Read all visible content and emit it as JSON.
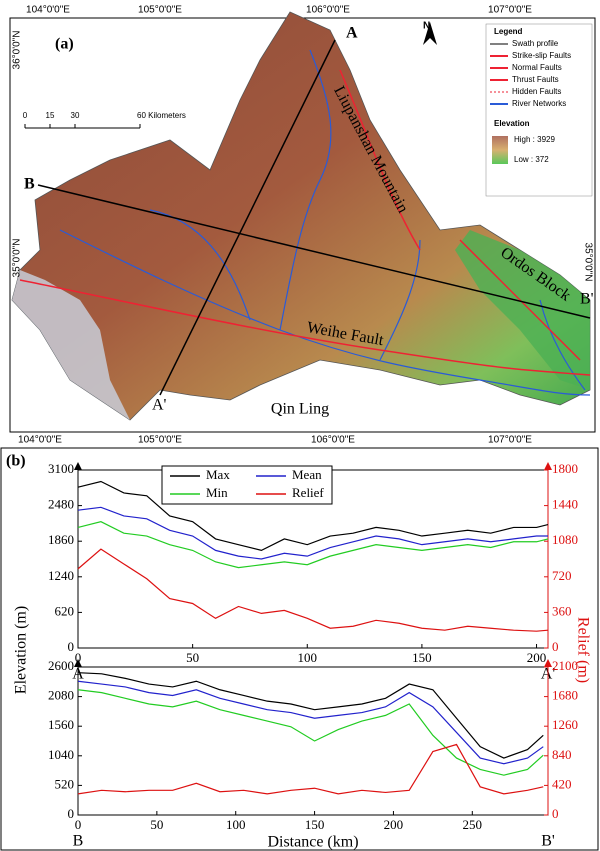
{
  "map": {
    "panel_label": "(a)",
    "lon_top": [
      "104°0'0\"E",
      "105°0'0\"E",
      "106°0'0\"E",
      "107°0'0\"E"
    ],
    "lon_bottom": [
      "104°0'0\"E",
      "105°0'0\"E",
      "106°0'0\"E",
      "107°0'0\"E"
    ],
    "lat_left": [
      "36°0'0\"N",
      "35°0'0\"N"
    ],
    "lat_right": [
      "35°0'0\"N"
    ],
    "north": "N",
    "scale": [
      "0",
      "15",
      "30",
      "60 Kilometers"
    ],
    "legend_title": "Legend",
    "legend_items": [
      "Swath profile",
      "Strike-slip Faults",
      "Normal Faults",
      "Thrust Faults",
      "Hidden Faults",
      "River Networks"
    ],
    "elevation_title": "Elevation",
    "elevation_high": "High : 3929",
    "elevation_low": "Low : 372",
    "profile_labels": [
      "A",
      "A'",
      "B",
      "B'"
    ],
    "place_labels": [
      "Liupanshan Mountain",
      "Ordos Block",
      "Weihe Fault",
      "Qin Ling"
    ]
  },
  "panel_label": "(b)",
  "y_label": "Elevation (m)",
  "y2_label": "Relief (m)",
  "x_label": "Distance (km)",
  "chart_data": [
    {
      "type": "line",
      "start_label": "A",
      "end_label": "A'",
      "legend": true,
      "x": [
        0,
        10,
        20,
        30,
        40,
        50,
        60,
        70,
        80,
        90,
        100,
        110,
        120,
        130,
        140,
        150,
        160,
        170,
        180,
        190,
        200,
        205
      ],
      "series": [
        {
          "name": "Max",
          "color": "#000000",
          "values": [
            2800,
            2900,
            2700,
            2650,
            2300,
            2200,
            1900,
            1800,
            1700,
            1900,
            1800,
            1950,
            2000,
            2100,
            2050,
            1950,
            2000,
            2050,
            2000,
            2100,
            2100,
            2150
          ]
        },
        {
          "name": "Mean",
          "color": "#2222cc",
          "values": [
            2400,
            2450,
            2300,
            2250,
            2050,
            1950,
            1700,
            1600,
            1550,
            1650,
            1600,
            1750,
            1850,
            1950,
            1900,
            1800,
            1850,
            1900,
            1850,
            1900,
            1950,
            1950
          ]
        },
        {
          "name": "Min",
          "color": "#22cc22",
          "values": [
            2100,
            2200,
            2000,
            1950,
            1800,
            1700,
            1500,
            1400,
            1450,
            1500,
            1450,
            1600,
            1700,
            1800,
            1750,
            1700,
            1750,
            1800,
            1750,
            1850,
            1850,
            1900
          ]
        },
        {
          "name": "Relief",
          "color": "#dd1111",
          "axis": "y2",
          "values": [
            800,
            1000,
            850,
            700,
            500,
            450,
            300,
            420,
            350,
            380,
            300,
            200,
            220,
            280,
            250,
            200,
            180,
            220,
            200,
            180,
            170,
            180
          ]
        }
      ],
      "xlim": [
        0,
        205
      ],
      "xticks": [
        0,
        50,
        100,
        150,
        200
      ],
      "ylim": [
        0,
        3100
      ],
      "yticks": [
        0,
        620,
        1240,
        1860,
        2480,
        3100
      ],
      "y2lim": [
        0,
        1800
      ],
      "y2ticks": [
        0,
        360,
        720,
        1080,
        1440,
        1800
      ]
    },
    {
      "type": "line",
      "start_label": "B",
      "end_label": "B'",
      "legend": false,
      "x": [
        0,
        15,
        30,
        45,
        60,
        75,
        90,
        105,
        120,
        135,
        150,
        165,
        180,
        195,
        210,
        225,
        240,
        255,
        270,
        285,
        295
      ],
      "series": [
        {
          "name": "Max",
          "color": "#000000",
          "values": [
            2500,
            2480,
            2400,
            2300,
            2250,
            2350,
            2200,
            2100,
            2000,
            1950,
            1850,
            1900,
            1950,
            2050,
            2300,
            2200,
            1700,
            1200,
            1000,
            1150,
            1400
          ]
        },
        {
          "name": "Mean",
          "color": "#2222cc",
          "values": [
            2350,
            2300,
            2250,
            2150,
            2100,
            2200,
            2050,
            1950,
            1850,
            1800,
            1700,
            1750,
            1800,
            1900,
            2150,
            1900,
            1450,
            1000,
            900,
            1000,
            1200
          ]
        },
        {
          "name": "Min",
          "color": "#22cc22",
          "values": [
            2200,
            2150,
            2050,
            1950,
            1900,
            2000,
            1850,
            1750,
            1650,
            1550,
            1300,
            1500,
            1650,
            1750,
            1950,
            1400,
            1000,
            800,
            700,
            800,
            1050
          ]
        },
        {
          "name": "Relief",
          "color": "#dd1111",
          "axis": "y2",
          "values": [
            300,
            350,
            330,
            350,
            350,
            450,
            330,
            350,
            300,
            350,
            380,
            300,
            350,
            320,
            350,
            900,
            1000,
            400,
            300,
            350,
            400
          ]
        }
      ],
      "xlim": [
        0,
        298
      ],
      "xticks": [
        0,
        50,
        100,
        150,
        200,
        250
      ],
      "ylim": [
        0,
        2600
      ],
      "yticks": [
        0,
        520,
        1040,
        1560,
        2080,
        2600
      ],
      "y2lim": [
        0,
        2100
      ],
      "y2ticks": [
        0,
        420,
        840,
        1260,
        1680,
        2100
      ]
    }
  ]
}
